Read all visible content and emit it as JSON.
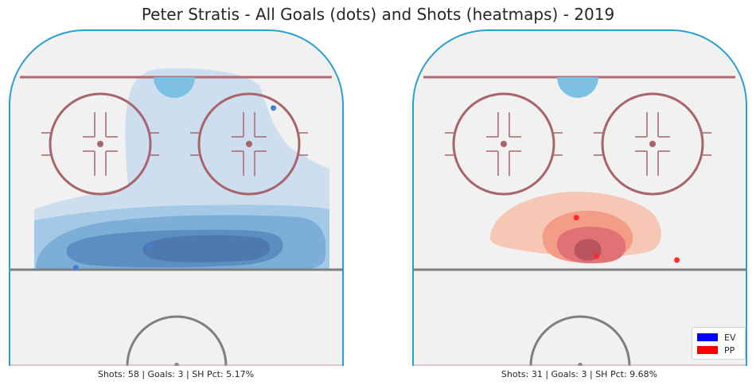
{
  "title": "Peter Stratis - All Goals (dots) and Shots (heatmaps) - 2019",
  "colors": {
    "ice": "#f1f1f1",
    "boards": "#2a9fd0",
    "goal_line": "#b06a70",
    "circle": "#a8646b",
    "center_line": "#7f7f7f",
    "crease": "#7cc1e3",
    "ev": "#0000ff",
    "pp": "#ff0000"
  },
  "chart_data": [
    {
      "type": "heatmap",
      "panel": "left",
      "series": [
        {
          "name": "EV",
          "color": "#3f7fd9",
          "goals": [
            {
              "x": 0.79,
              "y": 0.84
            },
            {
              "x": 0.42,
              "y": 0.12
            },
            {
              "x": 0.2,
              "y": 0.01
            }
          ]
        }
      ],
      "summary": "Shots: 58 | Goals: 3 | SH Pct: 5.17%"
    },
    {
      "type": "heatmap",
      "panel": "right",
      "series": [
        {
          "name": "PP",
          "color": "#ff2a2a",
          "goals": [
            {
              "x": 0.49,
              "y": 0.27
            },
            {
              "x": 0.55,
              "y": 0.07
            },
            {
              "x": 0.79,
              "y": 0.05
            }
          ]
        }
      ],
      "summary": "Shots: 31 | Goals: 3 | SH Pct: 9.68%"
    }
  ],
  "legend": [
    {
      "label": "EV",
      "color": "#0000ff"
    },
    {
      "label": "PP",
      "color": "#ff0000"
    }
  ]
}
